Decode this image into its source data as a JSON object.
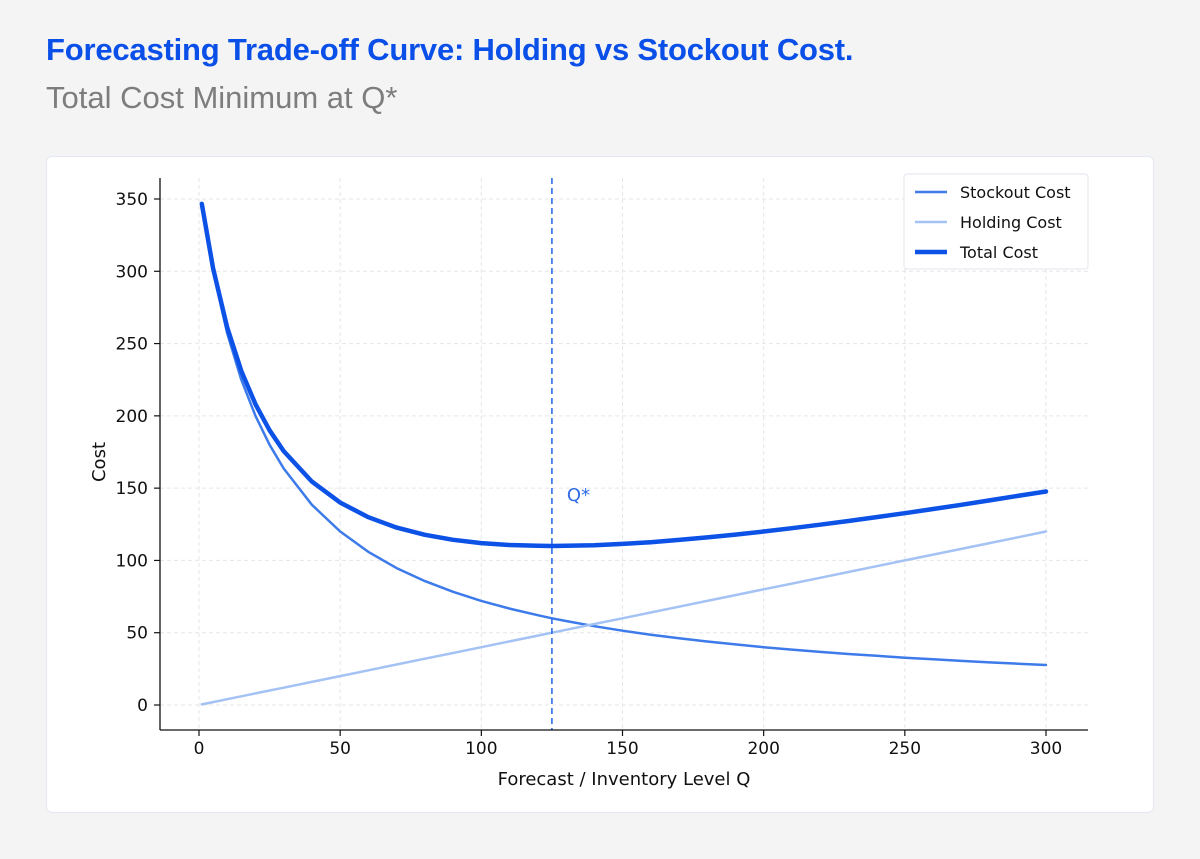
{
  "header": {
    "title": "Forecasting Trade-off Curve: Holding vs Stockout Cost.",
    "subtitle": "Total Cost Minimum at Q*"
  },
  "chart_data": {
    "type": "line",
    "xlabel": "Forecast / Inventory Level Q",
    "ylabel": "Cost",
    "xlim": [
      -14,
      315
    ],
    "ylim": [
      -17,
      364
    ],
    "xticks": [
      0,
      50,
      100,
      150,
      200,
      250,
      300
    ],
    "yticks": [
      0,
      50,
      100,
      150,
      200,
      250,
      300,
      350
    ],
    "grid": true,
    "legend_position": "top-right",
    "x": [
      1,
      5,
      10,
      15,
      20,
      25,
      30,
      40,
      50,
      60,
      70,
      80,
      90,
      100,
      110,
      120,
      125,
      130,
      140,
      150,
      160,
      170,
      180,
      190,
      200,
      210,
      220,
      230,
      240,
      250,
      260,
      270,
      280,
      290,
      300
    ],
    "series": [
      {
        "name": "Stockout Cost",
        "color": "#3d7bea",
        "width": 2.5,
        "values": [
          346.2,
          300,
          257.1,
          225,
          200,
          180,
          163.6,
          138.5,
          120,
          105.9,
          94.7,
          85.7,
          78.3,
          72,
          66.7,
          62.1,
          60,
          58.1,
          54.5,
          51.4,
          48.6,
          46.2,
          43.9,
          41.9,
          40,
          38.3,
          36.7,
          35.3,
          34,
          32.7,
          31.6,
          30.5,
          29.5,
          28.6,
          27.7
        ]
      },
      {
        "name": "Holding Cost",
        "color": "#a4c2f4",
        "width": 2.5,
        "values": [
          0.4,
          2,
          4,
          6,
          8,
          10,
          12,
          16,
          20,
          24,
          28,
          32,
          36,
          40,
          44,
          48,
          50,
          52,
          56,
          60,
          64,
          68,
          72,
          76,
          80,
          84,
          88,
          92,
          96,
          100,
          104,
          108,
          112,
          116,
          120
        ]
      },
      {
        "name": "Total Cost",
        "color": "#0d52e6",
        "width": 4.5,
        "values": [
          346.6,
          302,
          261.1,
          231,
          208,
          190,
          175.6,
          154.5,
          140,
          129.9,
          122.7,
          117.7,
          114.3,
          112,
          110.7,
          110.1,
          110,
          110.1,
          110.5,
          111.4,
          112.6,
          114.2,
          115.9,
          117.9,
          120,
          122.3,
          124.7,
          127.3,
          130,
          132.7,
          135.6,
          138.5,
          141.5,
          144.6,
          147.7
        ]
      }
    ],
    "annotations": [
      {
        "type": "vline",
        "x": 125,
        "style": "dashed",
        "color": "#2f6ce6",
        "label": "Q*"
      }
    ]
  }
}
